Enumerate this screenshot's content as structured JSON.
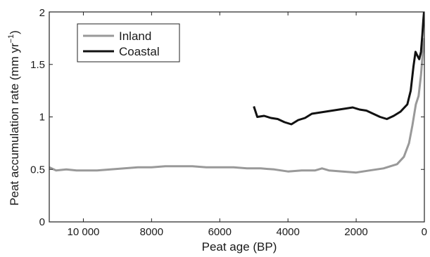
{
  "chart_data": {
    "type": "line",
    "title": "",
    "xlabel": "Peat age (BP)",
    "ylabel": "Peat accumulation rate (mm yr",
    "ylabel_sup": "−1",
    "ylabel_close": ")",
    "xlim": [
      11000,
      0
    ],
    "ylim": [
      0,
      2
    ],
    "x_ticks": [
      10000,
      8000,
      6000,
      4000,
      2000,
      0
    ],
    "x_tick_labels": [
      "10 000",
      "8000",
      "6000",
      "4000",
      "2000",
      "0"
    ],
    "y_ticks": [
      0,
      0.5,
      1,
      1.5,
      2
    ],
    "y_tick_labels": [
      "0",
      "0.5",
      "1",
      "1.5",
      "2"
    ],
    "grid": false,
    "legend_position": "top-left",
    "series": [
      {
        "name": "Inland",
        "color": "#999999",
        "points": [
          [
            11000,
            0.52
          ],
          [
            10800,
            0.49
          ],
          [
            10500,
            0.5
          ],
          [
            10200,
            0.49
          ],
          [
            10000,
            0.49
          ],
          [
            9600,
            0.49
          ],
          [
            9200,
            0.5
          ],
          [
            8800,
            0.51
          ],
          [
            8400,
            0.52
          ],
          [
            8000,
            0.52
          ],
          [
            7600,
            0.53
          ],
          [
            7200,
            0.53
          ],
          [
            6800,
            0.53
          ],
          [
            6400,
            0.52
          ],
          [
            6000,
            0.52
          ],
          [
            5600,
            0.52
          ],
          [
            5200,
            0.51
          ],
          [
            4800,
            0.51
          ],
          [
            4400,
            0.5
          ],
          [
            4000,
            0.48
          ],
          [
            3600,
            0.49
          ],
          [
            3200,
            0.49
          ],
          [
            3000,
            0.51
          ],
          [
            2800,
            0.49
          ],
          [
            2400,
            0.48
          ],
          [
            2000,
            0.47
          ],
          [
            1600,
            0.49
          ],
          [
            1200,
            0.51
          ],
          [
            800,
            0.55
          ],
          [
            600,
            0.62
          ],
          [
            450,
            0.75
          ],
          [
            350,
            0.92
          ],
          [
            250,
            1.12
          ],
          [
            170,
            1.2
          ],
          [
            100,
            1.4
          ],
          [
            50,
            1.6
          ],
          [
            0,
            1.75
          ]
        ]
      },
      {
        "name": "Coastal",
        "color": "#111111",
        "points": [
          [
            5000,
            1.1
          ],
          [
            4900,
            1.0
          ],
          [
            4700,
            1.01
          ],
          [
            4500,
            0.99
          ],
          [
            4300,
            0.98
          ],
          [
            4100,
            0.95
          ],
          [
            3900,
            0.93
          ],
          [
            3700,
            0.97
          ],
          [
            3500,
            0.99
          ],
          [
            3300,
            1.03
          ],
          [
            3100,
            1.04
          ],
          [
            2900,
            1.05
          ],
          [
            2700,
            1.06
          ],
          [
            2500,
            1.07
          ],
          [
            2300,
            1.08
          ],
          [
            2100,
            1.09
          ],
          [
            1900,
            1.07
          ],
          [
            1700,
            1.06
          ],
          [
            1500,
            1.03
          ],
          [
            1300,
            1.0
          ],
          [
            1100,
            0.98
          ],
          [
            900,
            1.01
          ],
          [
            700,
            1.05
          ],
          [
            500,
            1.12
          ],
          [
            400,
            1.25
          ],
          [
            320,
            1.48
          ],
          [
            260,
            1.62
          ],
          [
            200,
            1.58
          ],
          [
            150,
            1.55
          ],
          [
            100,
            1.62
          ],
          [
            60,
            1.78
          ],
          [
            30,
            1.92
          ],
          [
            10,
            2.0
          ]
        ]
      }
    ]
  }
}
